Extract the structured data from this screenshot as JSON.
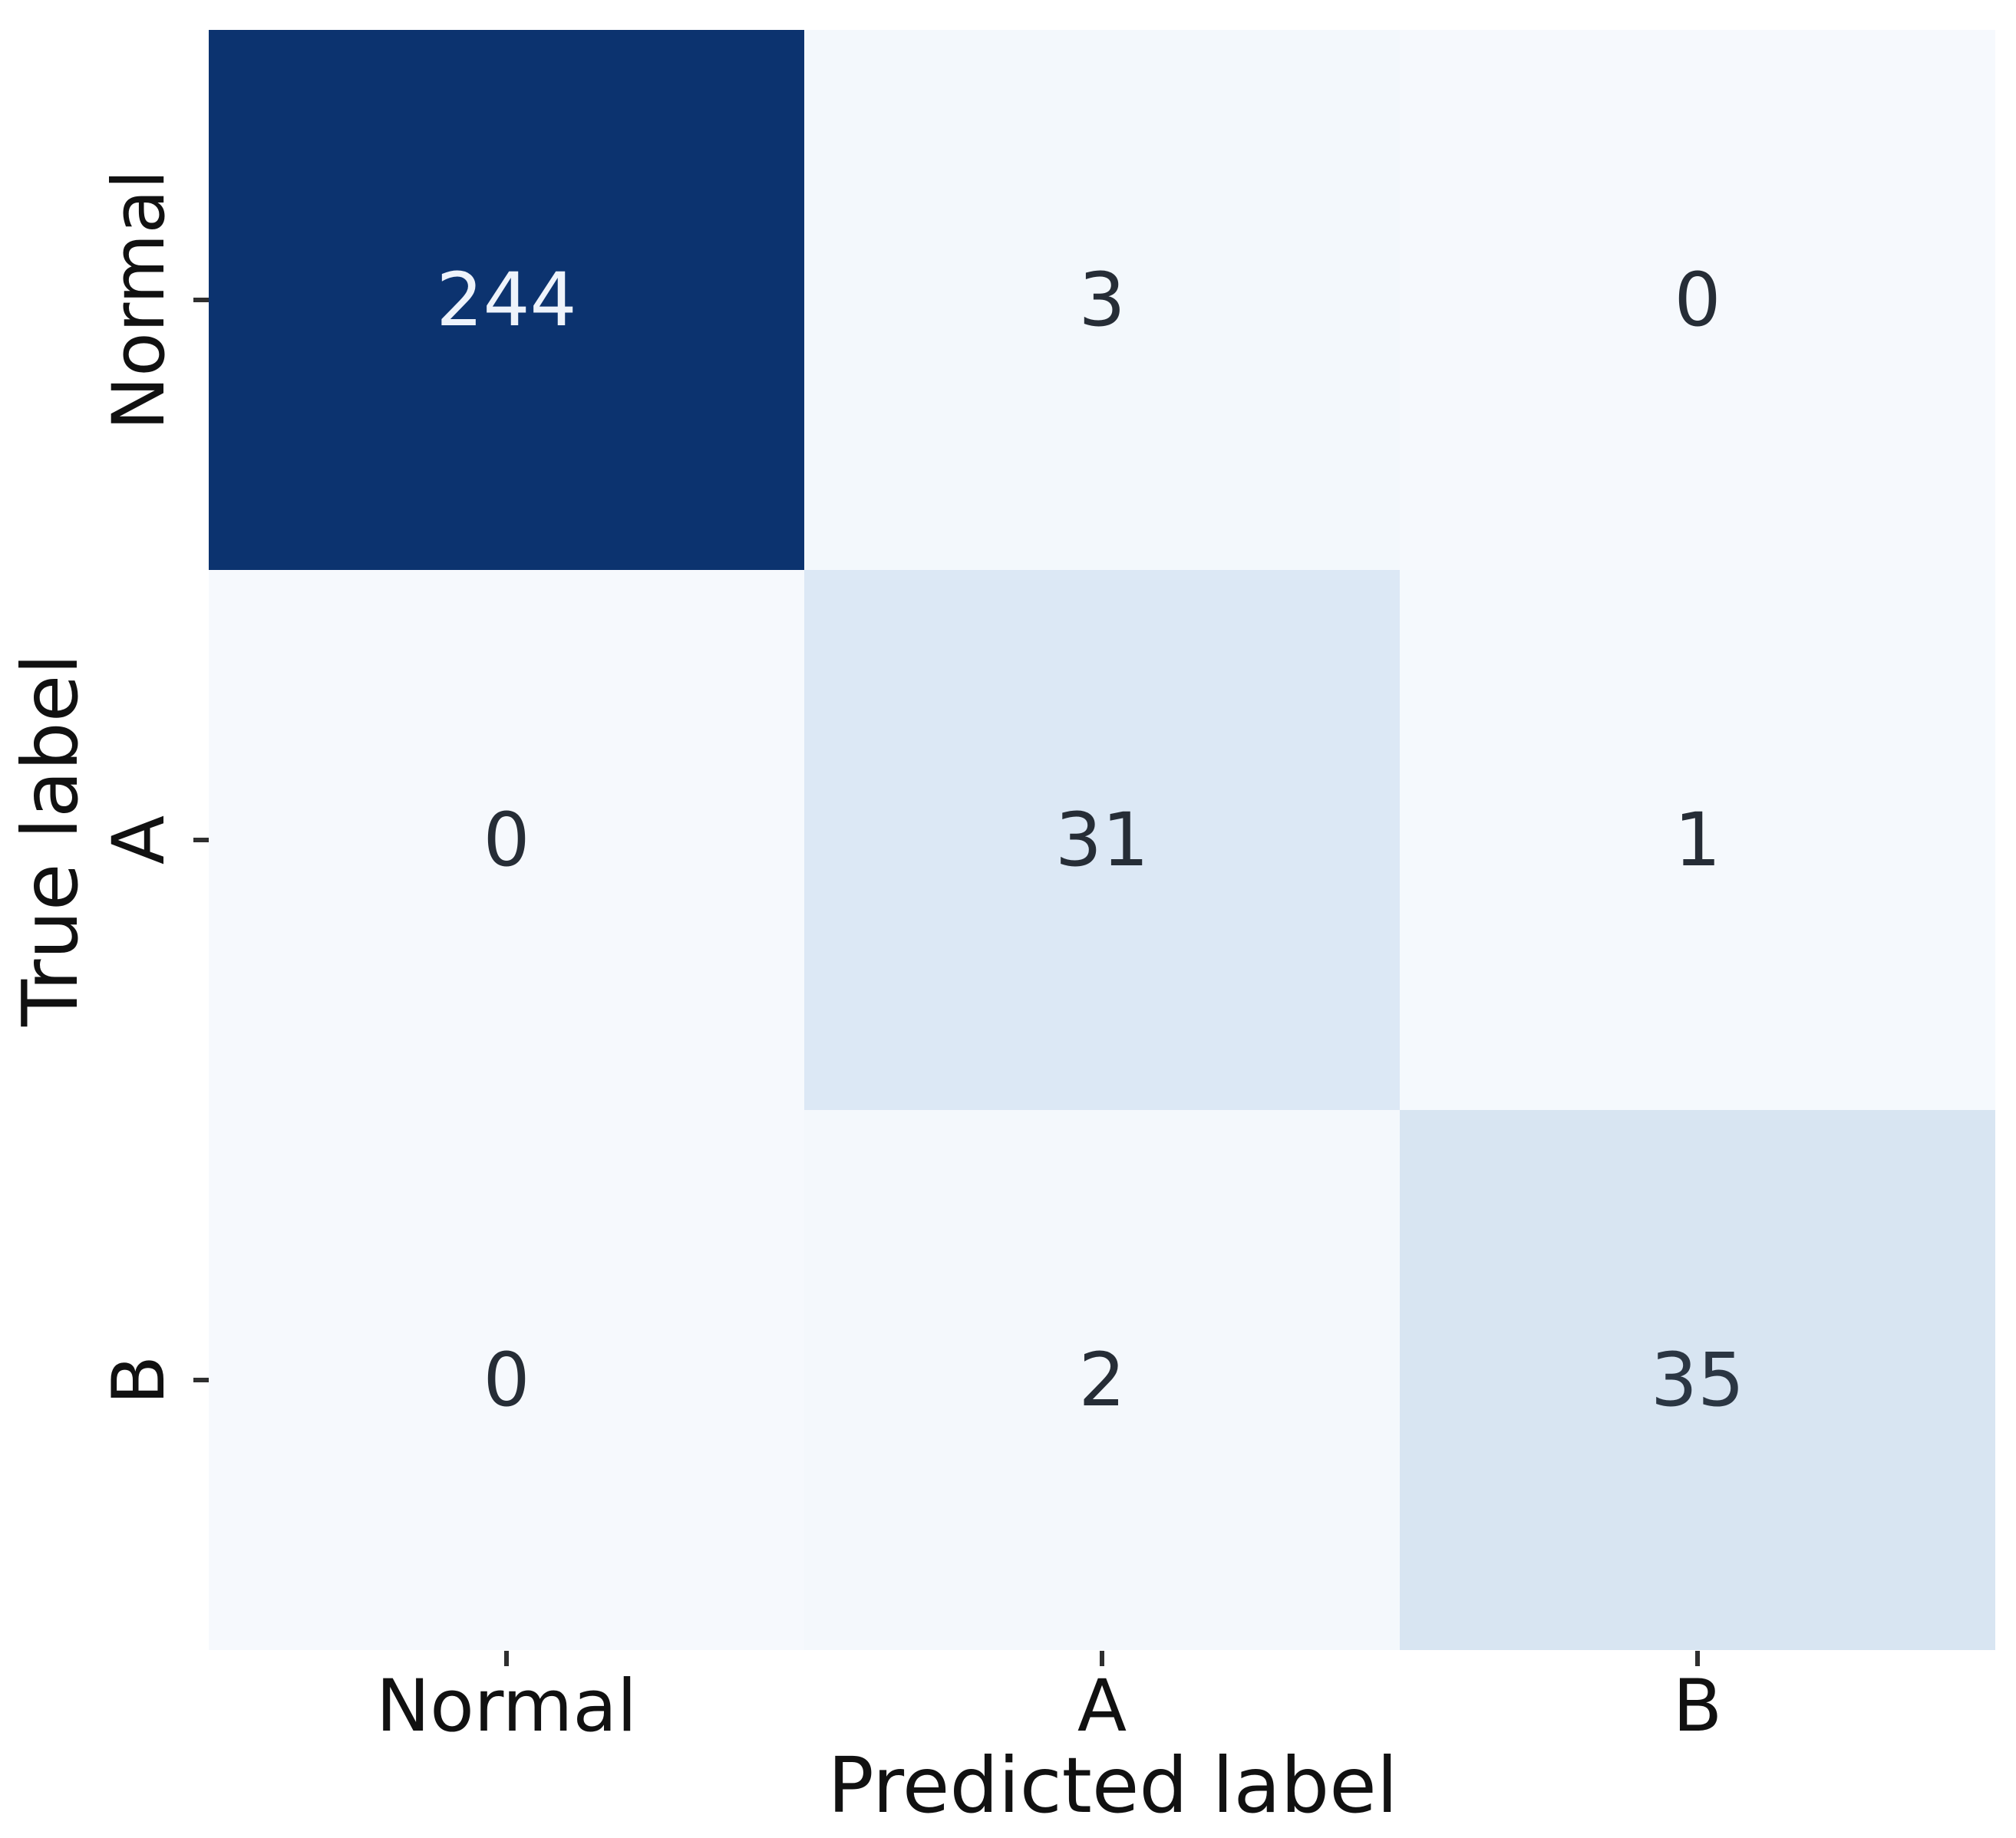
{
  "chart_data": {
    "type": "heatmap",
    "title": "",
    "xlabel": "Predicted label",
    "ylabel": "True label",
    "x_categories": [
      "Normal",
      "A",
      "B"
    ],
    "y_categories": [
      "Normal",
      "A",
      "B"
    ],
    "matrix": [
      [
        244,
        3,
        0
      ],
      [
        0,
        31,
        1
      ],
      [
        0,
        2,
        35
      ]
    ],
    "colormap": "Blues",
    "vmin": 0,
    "vmax": 244,
    "grid": false,
    "legend": "none",
    "annotations": true
  },
  "colors": {
    "max_cell": "#0c336f",
    "low_cell": "#f6f9fd",
    "mid_cell_31": "#dce8f5",
    "mid_cell_35": "#d8e5f2",
    "annotation_dark": "#262d36",
    "annotation_light": "#eef3fb",
    "axis_text": "#111111",
    "tick_mark": "#2f2f2f"
  },
  "cells": [
    {
      "row": "Normal",
      "col": "Normal",
      "value": "244",
      "bg": "#0c336f",
      "fg": "#eef3fb"
    },
    {
      "row": "Normal",
      "col": "A",
      "value": "3",
      "bg": "#f3f8fc",
      "fg": "#262d36"
    },
    {
      "row": "Normal",
      "col": "B",
      "value": "0",
      "bg": "#f6f9fd",
      "fg": "#262d36"
    },
    {
      "row": "A",
      "col": "Normal",
      "value": "0",
      "bg": "#f6f9fd",
      "fg": "#262d36"
    },
    {
      "row": "A",
      "col": "A",
      "value": "31",
      "bg": "#dce8f5",
      "fg": "#262d36"
    },
    {
      "row": "A",
      "col": "B",
      "value": "1",
      "bg": "#f5f9fd",
      "fg": "#262d36"
    },
    {
      "row": "B",
      "col": "Normal",
      "value": "0",
      "bg": "#f6f9fd",
      "fg": "#262d36"
    },
    {
      "row": "B",
      "col": "A",
      "value": "2",
      "bg": "#f4f8fc",
      "fg": "#262d36"
    },
    {
      "row": "B",
      "col": "B",
      "value": "35",
      "bg": "#d8e5f2",
      "fg": "#2b3643"
    }
  ],
  "x_axis": {
    "label": "Predicted label",
    "ticks": [
      "Normal",
      "A",
      "B"
    ]
  },
  "y_axis": {
    "label": "True label",
    "ticks": [
      "Normal",
      "A",
      "B"
    ]
  }
}
